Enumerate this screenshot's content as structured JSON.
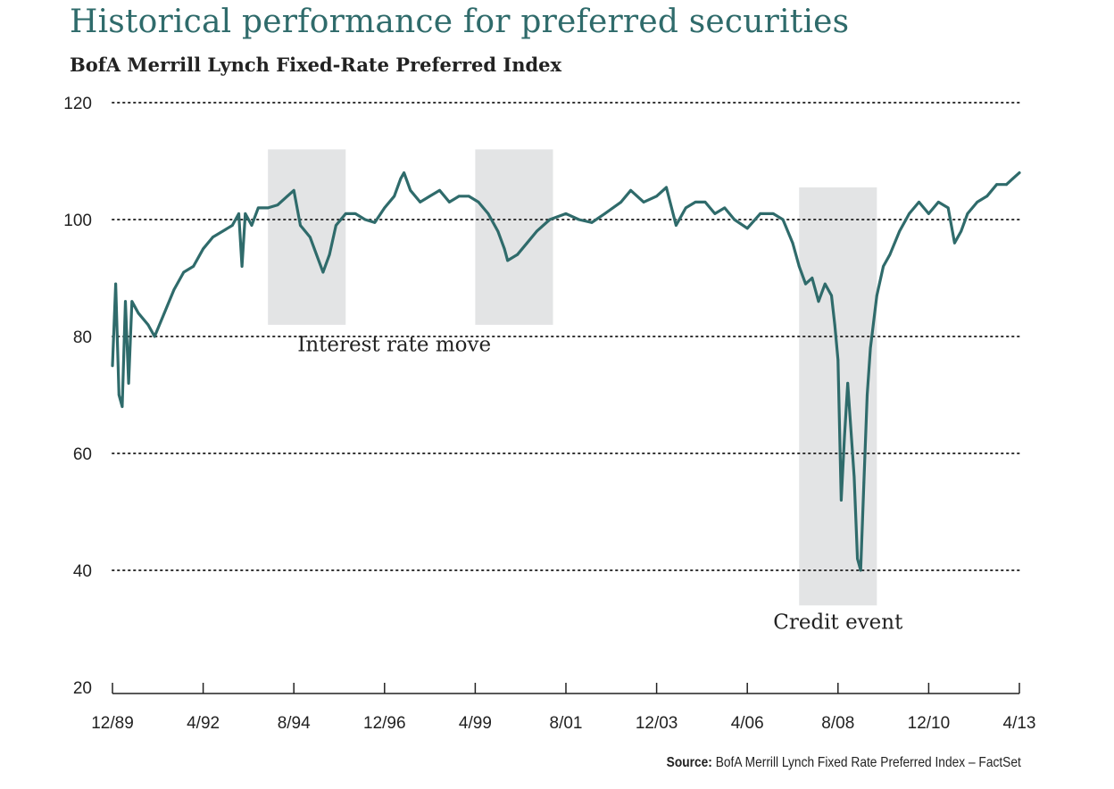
{
  "title": "Historical performance for preferred securities",
  "subtitle": "BofA Merrill Lynch Fixed-Rate Preferred Index",
  "source_label": "Source:",
  "source_text": "BofA Merrill Lynch Fixed Rate Preferred Index – FactSet",
  "chart_data": {
    "type": "line",
    "title": "Historical performance for preferred securities",
    "subtitle": "BofA Merrill Lynch Fixed-Rate Preferred Index",
    "xlabel": "",
    "ylabel": "",
    "ylim": [
      20,
      120
    ],
    "xlim": [
      "1989-12",
      "2013-04"
    ],
    "yticks": [
      20,
      40,
      60,
      80,
      100,
      120
    ],
    "xticks": [
      {
        "date": "1989-12",
        "label": "12/89"
      },
      {
        "date": "1992-04",
        "label": "4/92"
      },
      {
        "date": "1994-08",
        "label": "8/94"
      },
      {
        "date": "1996-12",
        "label": "12/96"
      },
      {
        "date": "1999-04",
        "label": "4/99"
      },
      {
        "date": "2001-08",
        "label": "8/01"
      },
      {
        "date": "2003-12",
        "label": "12/03"
      },
      {
        "date": "2006-04",
        "label": "4/06"
      },
      {
        "date": "2008-08",
        "label": "8/08"
      },
      {
        "date": "2010-12",
        "label": "12/10"
      },
      {
        "date": "2013-04",
        "label": "4/13"
      }
    ],
    "grid": "horizontal dotted",
    "line_color": "#2f6b6b",
    "shade_color": "#e3e4e5",
    "shaded_regions": [
      {
        "start": "1993-12",
        "end": "1995-12",
        "ymin": 82,
        "ymax": 112
      },
      {
        "start": "1999-04",
        "end": "2001-04",
        "ymin": 82,
        "ymax": 112
      },
      {
        "start": "2007-08",
        "end": "2009-08",
        "ymin": 34,
        "ymax": 105.5
      }
    ],
    "annotations": [
      {
        "text": "Interest rate move",
        "date": "1997-03",
        "y": 77.5
      },
      {
        "text": "Credit event",
        "date": "2008-08",
        "y": 30
      }
    ],
    "series": [
      {
        "points": [
          [
            "1989-12",
            75
          ],
          [
            "1990-01",
            89
          ],
          [
            "1990-02",
            70
          ],
          [
            "1990-03",
            68
          ],
          [
            "1990-04",
            86
          ],
          [
            "1990-05",
            72
          ],
          [
            "1990-06",
            86
          ],
          [
            "1990-08",
            84
          ],
          [
            "1990-11",
            82
          ],
          [
            "1991-01",
            80
          ],
          [
            "1991-04",
            84
          ],
          [
            "1991-07",
            88
          ],
          [
            "1991-10",
            91
          ],
          [
            "1992-01",
            92
          ],
          [
            "1992-04",
            95
          ],
          [
            "1992-07",
            97
          ],
          [
            "1992-10",
            98
          ],
          [
            "1993-01",
            99
          ],
          [
            "1993-03",
            101
          ],
          [
            "1993-04",
            92
          ],
          [
            "1993-05",
            101
          ],
          [
            "1993-07",
            99
          ],
          [
            "1993-09",
            102
          ],
          [
            "1993-12",
            102
          ],
          [
            "1994-03",
            102.5
          ],
          [
            "1994-06",
            104
          ],
          [
            "1994-08",
            105
          ],
          [
            "1994-10",
            99
          ],
          [
            "1995-01",
            97
          ],
          [
            "1995-03",
            94
          ],
          [
            "1995-05",
            91
          ],
          [
            "1995-07",
            94
          ],
          [
            "1995-09",
            99
          ],
          [
            "1995-12",
            101
          ],
          [
            "1996-03",
            101
          ],
          [
            "1996-06",
            100
          ],
          [
            "1996-09",
            99.5
          ],
          [
            "1996-12",
            102
          ],
          [
            "1997-03",
            104
          ],
          [
            "1997-05",
            107
          ],
          [
            "1997-06",
            108
          ],
          [
            "1997-08",
            105
          ],
          [
            "1997-11",
            103
          ],
          [
            "1998-02",
            104
          ],
          [
            "1998-05",
            105
          ],
          [
            "1998-08",
            103
          ],
          [
            "1998-11",
            104
          ],
          [
            "1999-02",
            104
          ],
          [
            "1999-05",
            103
          ],
          [
            "1999-08",
            101
          ],
          [
            "1999-11",
            98
          ],
          [
            "2000-01",
            95
          ],
          [
            "2000-02",
            93
          ],
          [
            "2000-05",
            94
          ],
          [
            "2000-08",
            96
          ],
          [
            "2000-11",
            98
          ],
          [
            "2001-03",
            100
          ],
          [
            "2001-08",
            101
          ],
          [
            "2001-12",
            100
          ],
          [
            "2002-04",
            99.5
          ],
          [
            "2002-08",
            101
          ],
          [
            "2003-01",
            103
          ],
          [
            "2003-04",
            105
          ],
          [
            "2003-08",
            103
          ],
          [
            "2003-12",
            104
          ],
          [
            "2004-03",
            105.5
          ],
          [
            "2004-06",
            99
          ],
          [
            "2004-09",
            102
          ],
          [
            "2004-12",
            103
          ],
          [
            "2005-03",
            103
          ],
          [
            "2005-06",
            101
          ],
          [
            "2005-09",
            102
          ],
          [
            "2005-12",
            100
          ],
          [
            "2006-04",
            98.5
          ],
          [
            "2006-08",
            101
          ],
          [
            "2006-12",
            101
          ],
          [
            "2007-03",
            100
          ],
          [
            "2007-06",
            96
          ],
          [
            "2007-08",
            92
          ],
          [
            "2007-10",
            89
          ],
          [
            "2007-12",
            90
          ],
          [
            "2008-02",
            86
          ],
          [
            "2008-04",
            89
          ],
          [
            "2008-06",
            87
          ],
          [
            "2008-07",
            82
          ],
          [
            "2008-08",
            76
          ],
          [
            "2008-09",
            52
          ],
          [
            "2008-10",
            63
          ],
          [
            "2008-11",
            72
          ],
          [
            "2009-01",
            56
          ],
          [
            "2009-02",
            42
          ],
          [
            "2009-03",
            40
          ],
          [
            "2009-04",
            55
          ],
          [
            "2009-05",
            70
          ],
          [
            "2009-06",
            78
          ],
          [
            "2009-08",
            87
          ],
          [
            "2009-10",
            92
          ],
          [
            "2009-12",
            94
          ],
          [
            "2010-03",
            98
          ],
          [
            "2010-06",
            101
          ],
          [
            "2010-09",
            103
          ],
          [
            "2010-12",
            101
          ],
          [
            "2011-03",
            103
          ],
          [
            "2011-06",
            102
          ],
          [
            "2011-08",
            96
          ],
          [
            "2011-10",
            98
          ],
          [
            "2011-12",
            101
          ],
          [
            "2012-03",
            103
          ],
          [
            "2012-06",
            104
          ],
          [
            "2012-09",
            106
          ],
          [
            "2012-12",
            106
          ],
          [
            "2013-02",
            107
          ],
          [
            "2013-04",
            108
          ]
        ]
      }
    ]
  }
}
